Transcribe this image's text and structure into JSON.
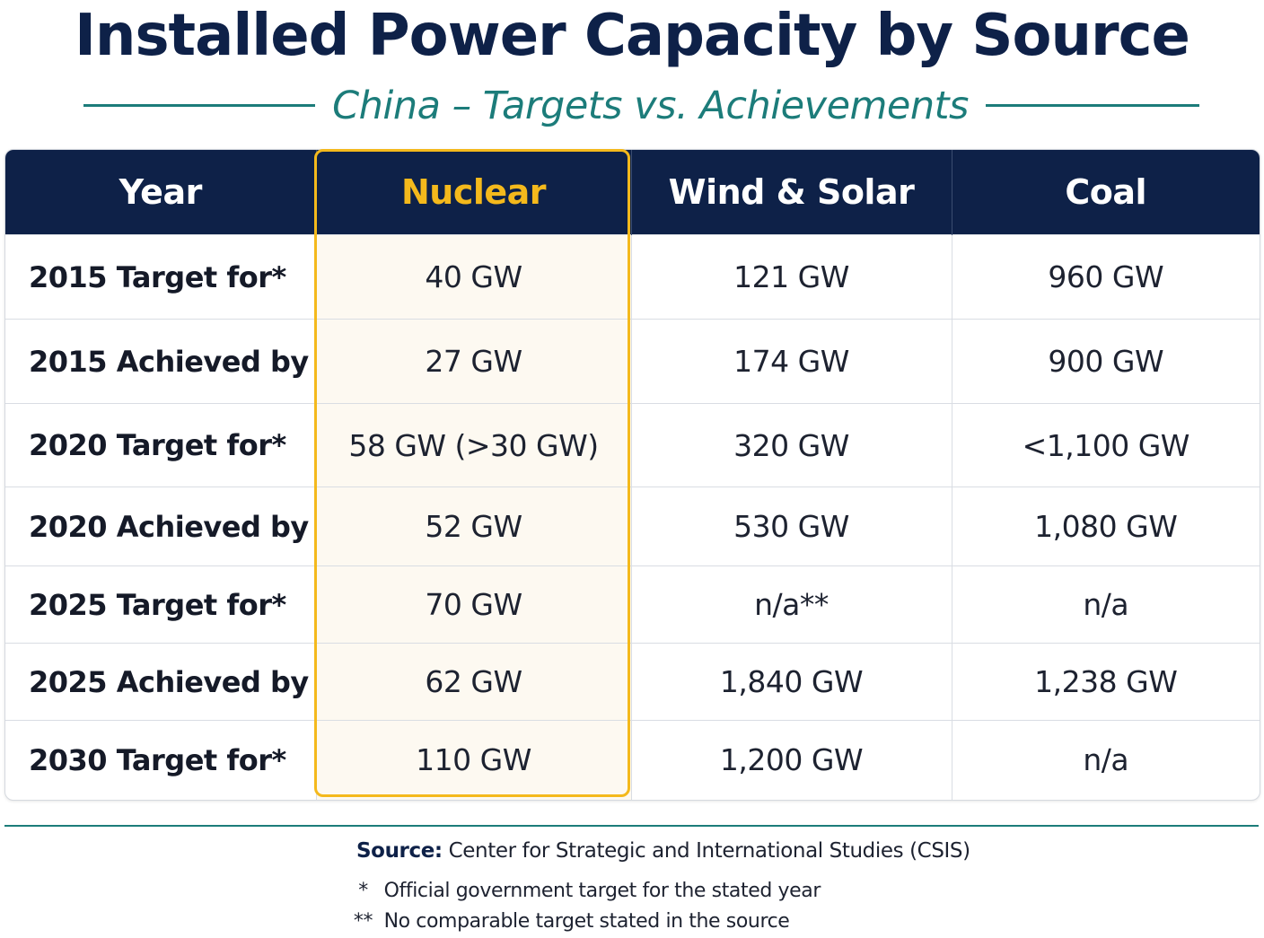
{
  "title": "Installed Power Capacity by Source",
  "subtitle": "China – Targets vs. Achievements",
  "chart_data": {
    "type": "table",
    "columns": [
      "Year",
      "Nuclear",
      "Wind & Solar",
      "Coal"
    ],
    "highlighted_column": "Nuclear",
    "rows": [
      [
        "2015 Target for*",
        "40 GW",
        "121 GW",
        "960 GW"
      ],
      [
        "2015 Achieved by",
        "27 GW",
        "174 GW",
        "900 GW"
      ],
      [
        "2020 Target for*",
        "58 GW (>30 GW)",
        "320 GW",
        "<1,100 GW"
      ],
      [
        "2020 Achieved by",
        "52 GW",
        "530 GW",
        "1,080 GW"
      ],
      [
        "2025 Target for*",
        "70 GW",
        "n/a**",
        "n/a"
      ],
      [
        "2025 Achieved by",
        "62 GW",
        "1,840 GW",
        "1,238 GW"
      ],
      [
        "2030 Target for*",
        "110 GW",
        "1,200 GW",
        "n/a"
      ]
    ]
  },
  "footer": {
    "source_label": "Source:",
    "source_text": " Center for Strategic and International Studies (CSIS)",
    "notes": [
      {
        "mark": "*",
        "text": "Official government target for the stated year"
      },
      {
        "mark": "**",
        "text": "No comparable target stated in the source"
      }
    ]
  },
  "colors": {
    "header_bg": "#0e2148",
    "accent_teal": "#1c7c7a",
    "highlight_gold": "#f4b91c"
  }
}
